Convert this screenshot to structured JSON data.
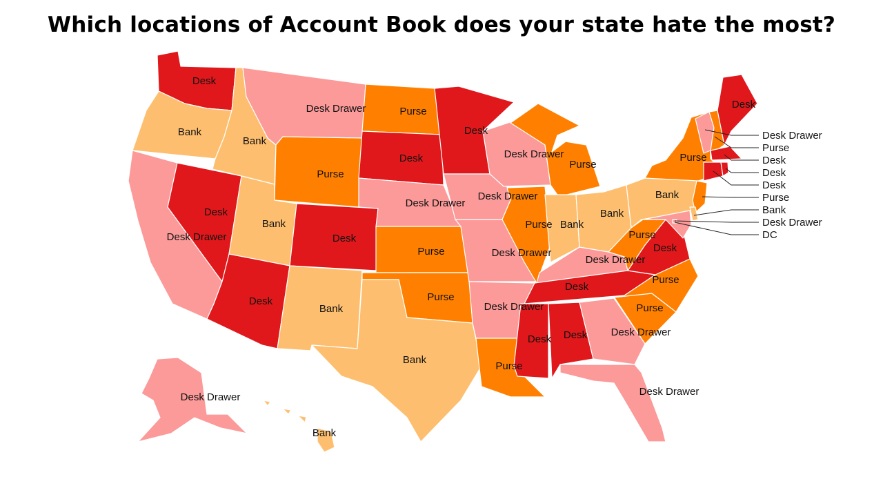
{
  "title": "Which locations of Account Book does your state hate the most?",
  "colors": {
    "Desk": "#e0181b",
    "Purse": "#ff8000",
    "Bank": "#fdbf6f",
    "Desk Drawer": "#fb9a99"
  },
  "states": {
    "WA": "Desk",
    "OR": "Bank",
    "CA": "Desk Drawer",
    "NV": "Desk",
    "ID": "Bank",
    "MT": "Desk Drawer",
    "WY": "Purse",
    "UT": "Bank",
    "AZ": "Desk",
    "CO": "Desk",
    "NM": "Bank",
    "ND": "Purse",
    "SD": "Desk",
    "NE": "Desk Drawer",
    "KS": "Purse",
    "OK": "Purse",
    "TX": "Bank",
    "MN": "Desk",
    "IA": "Desk Drawer",
    "MO": "Desk Drawer",
    "AR": "Desk Drawer",
    "LA": "Purse",
    "WI": "Desk Drawer",
    "IL": "Purse",
    "MI": "Purse",
    "IN": "Bank",
    "OH": "Bank",
    "KY": "Desk Drawer",
    "TN": "Desk",
    "MS": "Desk",
    "AL": "Desk",
    "GA": "Desk Drawer",
    "FL": "Desk Drawer",
    "SC": "Purse",
    "NC": "Purse",
    "VA": "Desk",
    "WV": "Purse",
    "PA": "Bank",
    "NY": "Purse",
    "ME": "Desk",
    "AK": "Desk Drawer",
    "HI": "Bank",
    "VT": "Desk Drawer",
    "NH": "Purse",
    "MA": "Desk",
    "RI": "Desk",
    "CT": "Desk",
    "NJ": "Purse",
    "DE": "Bank",
    "MD": "Desk Drawer",
    "DC": "DC"
  },
  "ne_callouts": [
    "Desk Drawer",
    "Purse",
    "Desk",
    "Desk",
    "Desk",
    "Purse",
    "Bank",
    "Desk Drawer",
    "DC"
  ]
}
